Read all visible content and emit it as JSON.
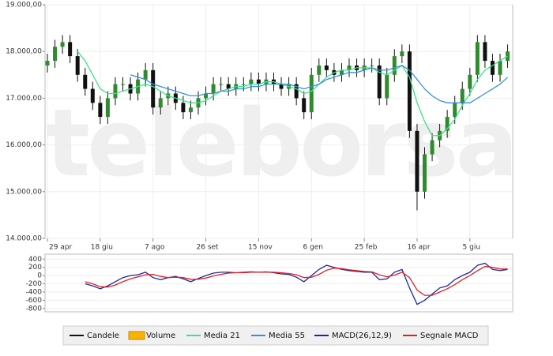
{
  "watermark": "teleborsa",
  "chart_data": [
    {
      "type": "candlestick",
      "categories": [
        "29 apr",
        null,
        null,
        null,
        null,
        null,
        null,
        "18 giu",
        null,
        null,
        null,
        null,
        null,
        null,
        "7 ago",
        null,
        null,
        null,
        null,
        null,
        null,
        "26 set",
        null,
        null,
        null,
        null,
        null,
        null,
        "15 nov",
        null,
        null,
        null,
        null,
        null,
        null,
        "6 gen",
        null,
        null,
        null,
        null,
        null,
        null,
        "25 feb",
        null,
        null,
        null,
        null,
        null,
        null,
        "16 apr",
        null,
        null,
        null,
        null,
        null,
        null,
        "5 giu",
        null,
        null,
        null,
        null,
        null
      ],
      "open": [
        17700,
        17800,
        18100,
        18200,
        17900,
        17500,
        17200,
        16900,
        16600,
        17000,
        17300,
        17300,
        17100,
        17400,
        17600,
        16800,
        17000,
        17100,
        16900,
        16700,
        16800,
        17000,
        17100,
        17300,
        17300,
        17200,
        17300,
        17300,
        17400,
        17300,
        17400,
        17300,
        17200,
        17300,
        17000,
        16700,
        17500,
        17700,
        17600,
        17500,
        17600,
        17700,
        17600,
        17700,
        17700,
        17000,
        17500,
        17900,
        18000,
        16300,
        15000,
        15800,
        16100,
        16300,
        16600,
        16900,
        17200,
        17500,
        18200,
        17800,
        17500,
        17800
      ],
      "high": [
        17950,
        18250,
        18350,
        18350,
        18050,
        17650,
        17350,
        17050,
        17150,
        17450,
        17450,
        17450,
        17550,
        17750,
        17750,
        17150,
        17250,
        17250,
        17050,
        16950,
        17150,
        17250,
        17450,
        17450,
        17450,
        17450,
        17450,
        17550,
        17550,
        17550,
        17550,
        17450,
        17450,
        17450,
        17150,
        17650,
        17850,
        17850,
        17750,
        17750,
        17850,
        17850,
        17850,
        17850,
        17850,
        17650,
        18050,
        18150,
        18150,
        16450,
        15950,
        16250,
        16450,
        16750,
        17050,
        17350,
        17650,
        18350,
        18350,
        17950,
        17950,
        18150
      ],
      "low": [
        17550,
        17650,
        17950,
        17750,
        17350,
        17050,
        16750,
        16450,
        16450,
        16850,
        17150,
        16950,
        16950,
        17250,
        16650,
        16650,
        16850,
        16750,
        16550,
        16550,
        16650,
        16850,
        16950,
        17150,
        17050,
        17050,
        17150,
        17150,
        17150,
        17150,
        17150,
        17050,
        17050,
        16850,
        16550,
        16550,
        17350,
        17450,
        17350,
        17350,
        17450,
        17450,
        17450,
        17550,
        16850,
        16850,
        17350,
        17750,
        16150,
        14600,
        14850,
        15650,
        15950,
        16150,
        16450,
        16750,
        17050,
        17350,
        17650,
        17350,
        17350,
        17650
      ],
      "close": [
        17800,
        18100,
        18200,
        17900,
        17500,
        17200,
        16900,
        16600,
        17000,
        17300,
        17300,
        17100,
        17400,
        17600,
        16800,
        17000,
        17100,
        16900,
        16700,
        16800,
        17000,
        17100,
        17300,
        17300,
        17200,
        17300,
        17300,
        17400,
        17300,
        17400,
        17300,
        17200,
        17300,
        17000,
        16700,
        17500,
        17700,
        17600,
        17500,
        17600,
        17700,
        17600,
        17700,
        17700,
        17000,
        17500,
        17900,
        18000,
        16300,
        15000,
        15800,
        16100,
        16300,
        16600,
        16900,
        17200,
        17500,
        18200,
        17800,
        17500,
        17800,
        18000
      ],
      "up_color": "#2e8b2e",
      "down_color": "#111111",
      "series": [
        {
          "color": "#3ee08a",
          "values": [
            null,
            null,
            null,
            null,
            18000,
            17800,
            17500,
            17200,
            17100,
            17100,
            17150,
            17200,
            17250,
            17300,
            17250,
            17150,
            17050,
            17000,
            16950,
            16900,
            16900,
            16950,
            17050,
            17150,
            17200,
            17250,
            17250,
            17300,
            17300,
            17350,
            17350,
            17300,
            17250,
            17200,
            17100,
            17150,
            17300,
            17450,
            17550,
            17600,
            17600,
            17650,
            17650,
            17650,
            17550,
            17500,
            17600,
            17700,
            17450,
            16900,
            16500,
            16200,
            16200,
            16350,
            16550,
            16850,
            17100,
            17400,
            17600,
            17700,
            17800,
            17900
          ]
        },
        {
          "color": "#3a8fd8",
          "values": [
            null,
            null,
            null,
            null,
            null,
            null,
            null,
            null,
            null,
            null,
            null,
            17500,
            17450,
            17400,
            17300,
            17250,
            17200,
            17150,
            17100,
            17050,
            17050,
            17100,
            17100,
            17150,
            17150,
            17200,
            17200,
            17250,
            17250,
            17300,
            17300,
            17300,
            17300,
            17250,
            17200,
            17250,
            17300,
            17400,
            17450,
            17500,
            17550,
            17550,
            17600,
            17650,
            17600,
            17600,
            17650,
            17700,
            17600,
            17400,
            17200,
            17050,
            16950,
            16900,
            16900,
            16900,
            16900,
            17000,
            17100,
            17200,
            17300,
            17450
          ]
        }
      ],
      "ylim": [
        14000,
        19000
      ],
      "yticks": [
        {
          "value": 14000,
          "label": "14.000,00"
        },
        {
          "value": 15000,
          "label": "15.000,00"
        },
        {
          "value": 16000,
          "label": "16.000,00"
        },
        {
          "value": 17000,
          "label": "17.000,00"
        },
        {
          "value": 18000,
          "label": "18.000,00"
        },
        {
          "value": 19000,
          "label": "19.000,00"
        }
      ],
      "grid": true
    },
    {
      "type": "line",
      "series": [
        {
          "color": "#1a2a9a",
          "values": [
            null,
            null,
            null,
            null,
            null,
            -200,
            -250,
            -320,
            -250,
            -150,
            -50,
            0,
            20,
            80,
            -50,
            -100,
            -50,
            -20,
            -80,
            -150,
            -70,
            0,
            60,
            80,
            80,
            70,
            80,
            90,
            80,
            90,
            70,
            40,
            30,
            -40,
            -150,
            0,
            150,
            250,
            200,
            150,
            120,
            100,
            80,
            80,
            -100,
            -80,
            80,
            150,
            -300,
            -700,
            -600,
            -450,
            -300,
            -250,
            -100,
            0,
            80,
            250,
            300,
            150,
            120,
            150
          ]
        },
        {
          "color": "#e02020",
          "values": [
            null,
            null,
            null,
            null,
            null,
            -150,
            -200,
            -270,
            -280,
            -230,
            -150,
            -80,
            -30,
            20,
            30,
            -20,
            -50,
            -40,
            -50,
            -90,
            -90,
            -60,
            -10,
            30,
            60,
            70,
            70,
            80,
            80,
            85,
            80,
            70,
            50,
            20,
            -50,
            -40,
            30,
            130,
            180,
            170,
            140,
            120,
            100,
            90,
            20,
            -30,
            10,
            80,
            -50,
            -350,
            -480,
            -480,
            -400,
            -320,
            -220,
            -100,
            0,
            120,
            220,
            200,
            160,
            160
          ]
        }
      ],
      "ylim": [
        -880,
        520
      ],
      "yticks": [
        400,
        200,
        0,
        -200,
        -400,
        -600,
        -800
      ],
      "grid": true
    }
  ],
  "legend": [
    {
      "name": "Candele",
      "color": "#111111",
      "kind": "line"
    },
    {
      "name": "Volume",
      "color": "#f5b400",
      "kind": "box"
    },
    {
      "name": "Media 21",
      "color": "#3ee08a",
      "kind": "line"
    },
    {
      "name": "Media 55",
      "color": "#3a8fd8",
      "kind": "line"
    },
    {
      "name": "MACD(26,12,9)",
      "color": "#1a2a9a",
      "kind": "line"
    },
    {
      "name": "Segnale MACD",
      "color": "#e02020",
      "kind": "line"
    }
  ]
}
